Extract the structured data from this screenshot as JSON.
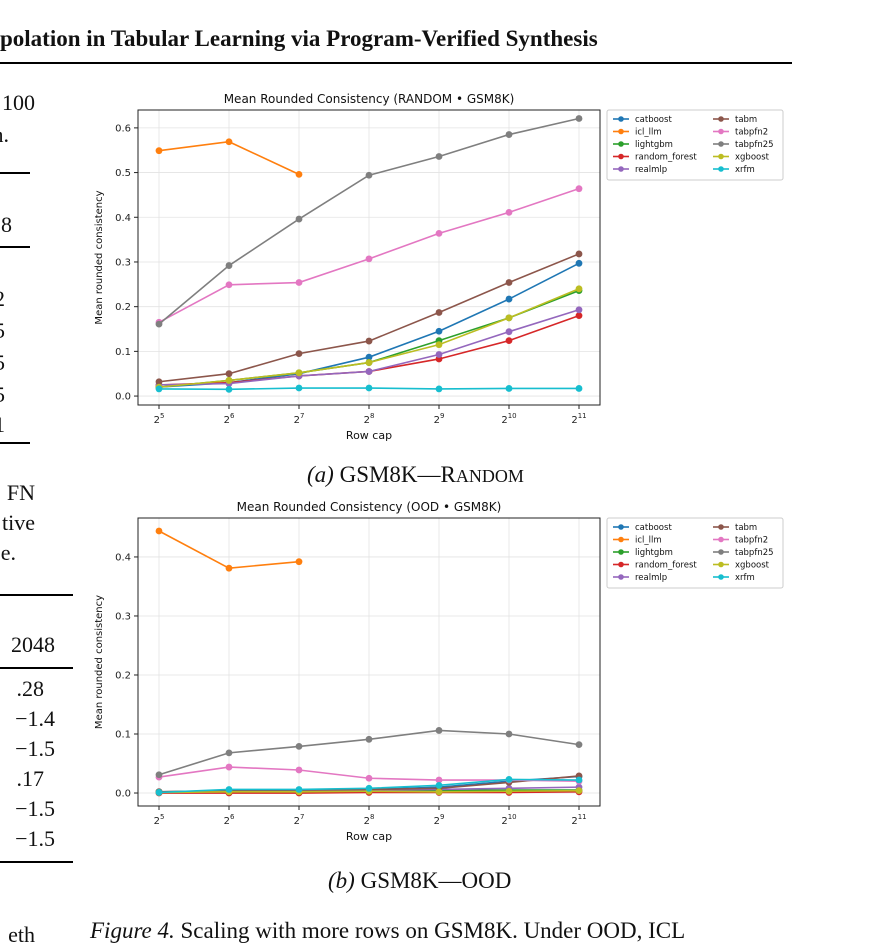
{
  "header": {
    "title": "polation in Tabular Learning via Program-Verified Synthesis"
  },
  "left_fragments": [
    {
      "text": "100"
    },
    {
      "text": "n."
    },
    {
      "text": "8"
    },
    {
      "text": "2"
    },
    {
      "text": "5"
    },
    {
      "text": "5"
    },
    {
      "text": "5"
    },
    {
      "text": "1"
    },
    {
      "text": "FN"
    },
    {
      "text": "tive"
    },
    {
      "text": "e."
    },
    {
      "text": "2048"
    },
    {
      "text": ".28"
    },
    {
      "text": "−1.4"
    },
    {
      "text": "−1.5"
    },
    {
      "text": ".17"
    },
    {
      "text": "−1.5"
    },
    {
      "text": "−1.5"
    },
    {
      "text": "eth"
    }
  ],
  "captions": {
    "a_prefix": "(a)",
    "a_main": "GSM8K—R",
    "a_sc": "ANDOM",
    "b_prefix": "(b)",
    "b_main": "GSM8K—OOD",
    "figure_label": "Figure 4.",
    "figure_text": "Scaling with more rows on GSM8K. Under OOD, ICL"
  },
  "legend_colors": {
    "catboost": "#1f77b4",
    "icl_llm": "#ff7f0e",
    "lightgbm": "#2ca02c",
    "random_forest": "#d62728",
    "realmlp": "#9467bd",
    "tabm": "#8c564b",
    "tabpfn2": "#e377c2",
    "tabpfn25": "#7f7f7f",
    "xgboost": "#bcbd22",
    "xrfm": "#17becf"
  },
  "chart_data": [
    {
      "type": "line",
      "title": "Mean Rounded Consistency (RANDOM • GSM8K)",
      "xlabel": "Row cap",
      "ylabel": "Mean rounded consistency",
      "x": [
        5,
        6,
        7,
        8,
        9,
        10,
        11
      ],
      "x_tick_labels": [
        "2^5",
        "2^6",
        "2^7",
        "2^8",
        "2^9",
        "2^10",
        "2^11"
      ],
      "ylim": [
        -0.02,
        0.64
      ],
      "y_ticks": [
        "0.0",
        "0.1",
        "0.2",
        "0.3",
        "0.4",
        "0.5",
        "0.6"
      ],
      "y_tick_values": [
        0.0,
        0.1,
        0.2,
        0.3,
        0.4,
        0.5,
        0.6
      ],
      "grid": true,
      "legend": "outside-right",
      "series": [
        {
          "name": "catboost",
          "values": [
            0.02,
            0.03,
            0.05,
            0.087,
            0.145,
            0.217,
            0.297
          ]
        },
        {
          "name": "icl_llm",
          "values": [
            0.549,
            0.569,
            0.496,
            null,
            null,
            null,
            null
          ]
        },
        {
          "name": "lightgbm",
          "values": [
            0.02,
            0.035,
            0.052,
            0.075,
            0.124,
            0.175,
            0.236
          ]
        },
        {
          "name": "random_forest",
          "values": [
            0.025,
            0.03,
            0.045,
            0.055,
            0.083,
            0.124,
            0.18
          ]
        },
        {
          "name": "realmlp",
          "values": [
            0.025,
            0.028,
            0.045,
            0.055,
            0.093,
            0.144,
            0.193
          ]
        },
        {
          "name": "tabm",
          "values": [
            0.032,
            0.05,
            0.095,
            0.123,
            0.187,
            0.254,
            0.318
          ]
        },
        {
          "name": "tabpfn2",
          "values": [
            0.165,
            0.249,
            0.254,
            0.307,
            0.364,
            0.411,
            0.464
          ]
        },
        {
          "name": "tabpfn25",
          "values": [
            0.161,
            0.292,
            0.396,
            0.494,
            0.536,
            0.585,
            0.621
          ]
        },
        {
          "name": "xgboost",
          "values": [
            0.02,
            0.035,
            0.052,
            0.075,
            0.115,
            0.175,
            0.24
          ]
        },
        {
          "name": "xrfm",
          "values": [
            0.016,
            0.015,
            0.018,
            0.018,
            0.016,
            0.017,
            0.017
          ]
        }
      ]
    },
    {
      "type": "line",
      "title": "Mean Rounded Consistency (OOD • GSM8K)",
      "xlabel": "Row cap",
      "ylabel": "Mean rounded consistency",
      "x": [
        5,
        6,
        7,
        8,
        9,
        10,
        11
      ],
      "x_tick_labels": [
        "2^5",
        "2^6",
        "2^7",
        "2^8",
        "2^9",
        "2^10",
        "2^11"
      ],
      "ylim": [
        -0.022,
        0.466
      ],
      "y_ticks": [
        "0.0",
        "0.1",
        "0.2",
        "0.3",
        "0.4"
      ],
      "y_tick_values": [
        0.0,
        0.1,
        0.2,
        0.3,
        0.4
      ],
      "grid": true,
      "legend": "outside-right",
      "series": [
        {
          "name": "catboost",
          "values": [
            0.002,
            0.003,
            0.004,
            0.006,
            0.01,
            0.02,
            0.028
          ]
        },
        {
          "name": "icl_llm",
          "values": [
            0.444,
            0.381,
            0.392,
            null,
            null,
            null,
            null
          ]
        },
        {
          "name": "lightgbm",
          "values": [
            0.002,
            0.003,
            0.003,
            0.004,
            0.004,
            0.005,
            0.005
          ]
        },
        {
          "name": "random_forest",
          "values": [
            0.0,
            0.0,
            0.0,
            0.001,
            0.001,
            0.001,
            0.002
          ]
        },
        {
          "name": "realmlp",
          "values": [
            0.002,
            0.003,
            0.004,
            0.005,
            0.006,
            0.008,
            0.01
          ]
        },
        {
          "name": "tabm",
          "values": [
            0.002,
            0.004,
            0.005,
            0.006,
            0.008,
            0.018,
            0.029
          ]
        },
        {
          "name": "tabpfn2",
          "values": [
            0.027,
            0.044,
            0.039,
            0.025,
            0.022,
            0.022,
            0.02
          ]
        },
        {
          "name": "tabpfn25",
          "values": [
            0.031,
            0.068,
            0.079,
            0.091,
            0.106,
            0.1,
            0.082
          ]
        },
        {
          "name": "xgboost",
          "values": [
            0.001,
            0.002,
            0.002,
            0.003,
            0.002,
            0.003,
            0.004
          ]
        },
        {
          "name": "xrfm",
          "values": [
            0.001,
            0.006,
            0.006,
            0.008,
            0.013,
            0.023,
            0.022
          ]
        }
      ]
    }
  ]
}
